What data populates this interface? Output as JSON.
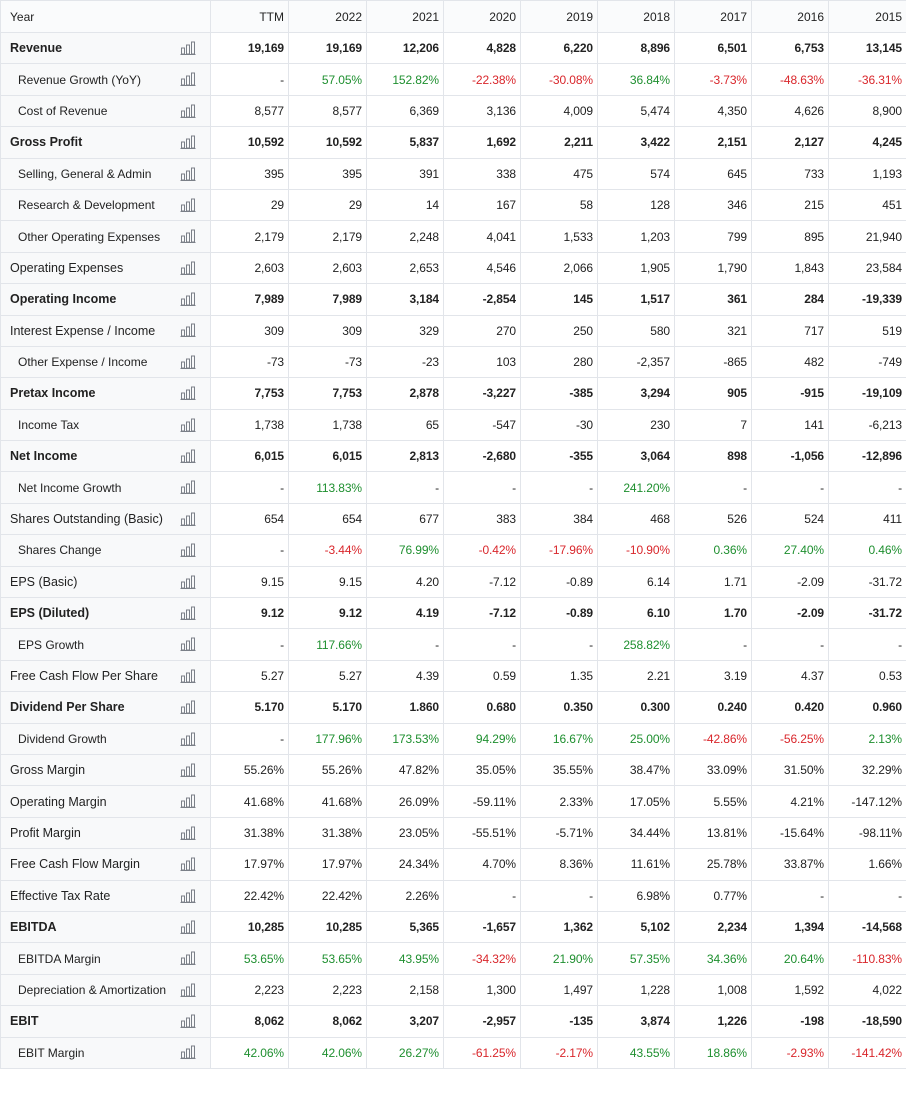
{
  "colors": {
    "positive": "#1e8f2f",
    "negative": "#d9262b",
    "chart_icon": "#7b8088"
  },
  "header": {
    "label": "Year",
    "columns": [
      "TTM",
      "2022",
      "2021",
      "2020",
      "2019",
      "2018",
      "2017",
      "2016",
      "2015"
    ]
  },
  "rows": [
    {
      "label": "Revenue",
      "bold": true,
      "values": [
        "19,169",
        "19,169",
        "12,206",
        "4,828",
        "6,220",
        "8,896",
        "6,501",
        "6,753",
        "13,145"
      ]
    },
    {
      "label": "Revenue Growth (YoY)",
      "sub": true,
      "values": [
        "-",
        "57.05%",
        "152.82%",
        "-22.38%",
        "-30.08%",
        "36.84%",
        "-3.73%",
        "-48.63%",
        "-36.31%"
      ]
    },
    {
      "label": "Cost of Revenue",
      "sub": true,
      "values": [
        "8,577",
        "8,577",
        "6,369",
        "3,136",
        "4,009",
        "5,474",
        "4,350",
        "4,626",
        "8,900"
      ]
    },
    {
      "label": "Gross Profit",
      "bold": true,
      "values": [
        "10,592",
        "10,592",
        "5,837",
        "1,692",
        "2,211",
        "3,422",
        "2,151",
        "2,127",
        "4,245"
      ]
    },
    {
      "label": "Selling, General & Admin",
      "sub": true,
      "values": [
        "395",
        "395",
        "391",
        "338",
        "475",
        "574",
        "645",
        "733",
        "1,193"
      ]
    },
    {
      "label": "Research & Development",
      "sub": true,
      "values": [
        "29",
        "29",
        "14",
        "167",
        "58",
        "128",
        "346",
        "215",
        "451"
      ]
    },
    {
      "label": "Other Operating Expenses",
      "sub": true,
      "values": [
        "2,179",
        "2,179",
        "2,248",
        "4,041",
        "1,533",
        "1,203",
        "799",
        "895",
        "21,940"
      ]
    },
    {
      "label": "Operating Expenses",
      "values": [
        "2,603",
        "2,603",
        "2,653",
        "4,546",
        "2,066",
        "1,905",
        "1,790",
        "1,843",
        "23,584"
      ]
    },
    {
      "label": "Operating Income",
      "bold": true,
      "values": [
        "7,989",
        "7,989",
        "3,184",
        "-2,854",
        "145",
        "1,517",
        "361",
        "284",
        "-19,339"
      ]
    },
    {
      "label": "Interest Expense / Income",
      "values": [
        "309",
        "309",
        "329",
        "270",
        "250",
        "580",
        "321",
        "717",
        "519"
      ]
    },
    {
      "label": "Other Expense / Income",
      "sub": true,
      "values": [
        "-73",
        "-73",
        "-23",
        "103",
        "280",
        "-2,357",
        "-865",
        "482",
        "-749"
      ]
    },
    {
      "label": "Pretax Income",
      "bold": true,
      "values": [
        "7,753",
        "7,753",
        "2,878",
        "-3,227",
        "-385",
        "3,294",
        "905",
        "-915",
        "-19,109"
      ]
    },
    {
      "label": "Income Tax",
      "sub": true,
      "values": [
        "1,738",
        "1,738",
        "65",
        "-547",
        "-30",
        "230",
        "7",
        "141",
        "-6,213"
      ]
    },
    {
      "label": "Net Income",
      "bold": true,
      "values": [
        "6,015",
        "6,015",
        "2,813",
        "-2,680",
        "-355",
        "3,064",
        "898",
        "-1,056",
        "-12,896"
      ]
    },
    {
      "label": "Net Income Growth",
      "sub": true,
      "values": [
        "-",
        "113.83%",
        "-",
        "-",
        "-",
        "241.20%",
        "-",
        "-",
        "-"
      ]
    },
    {
      "label": "Shares Outstanding (Basic)",
      "values": [
        "654",
        "654",
        "677",
        "383",
        "384",
        "468",
        "526",
        "524",
        "411"
      ]
    },
    {
      "label": "Shares Change",
      "sub": true,
      "values": [
        "-",
        "-3.44%",
        "76.99%",
        "-0.42%",
        "-17.96%",
        "-10.90%",
        "0.36%",
        "27.40%",
        "0.46%"
      ]
    },
    {
      "label": "EPS (Basic)",
      "values": [
        "9.15",
        "9.15",
        "4.20",
        "-7.12",
        "-0.89",
        "6.14",
        "1.71",
        "-2.09",
        "-31.72"
      ]
    },
    {
      "label": "EPS (Diluted)",
      "bold": true,
      "values": [
        "9.12",
        "9.12",
        "4.19",
        "-7.12",
        "-0.89",
        "6.10",
        "1.70",
        "-2.09",
        "-31.72"
      ]
    },
    {
      "label": "EPS Growth",
      "sub": true,
      "values": [
        "-",
        "117.66%",
        "-",
        "-",
        "-",
        "258.82%",
        "-",
        "-",
        "-"
      ]
    },
    {
      "label": "Free Cash Flow Per Share",
      "values": [
        "5.27",
        "5.27",
        "4.39",
        "0.59",
        "1.35",
        "2.21",
        "3.19",
        "4.37",
        "0.53"
      ]
    },
    {
      "label": "Dividend Per Share",
      "bold": true,
      "values": [
        "5.170",
        "5.170",
        "1.860",
        "0.680",
        "0.350",
        "0.300",
        "0.240",
        "0.420",
        "0.960"
      ]
    },
    {
      "label": "Dividend Growth",
      "sub": true,
      "values": [
        "-",
        "177.96%",
        "173.53%",
        "94.29%",
        "16.67%",
        "25.00%",
        "-42.86%",
        "-56.25%",
        "2.13%"
      ]
    },
    {
      "label": "Gross Margin",
      "values": [
        "55.26%",
        "55.26%",
        "47.82%",
        "35.05%",
        "35.55%",
        "38.47%",
        "33.09%",
        "31.50%",
        "32.29%"
      ]
    },
    {
      "label": "Operating Margin",
      "values": [
        "41.68%",
        "41.68%",
        "26.09%",
        "-59.11%",
        "2.33%",
        "17.05%",
        "5.55%",
        "4.21%",
        "-147.12%"
      ]
    },
    {
      "label": "Profit Margin",
      "values": [
        "31.38%",
        "31.38%",
        "23.05%",
        "-55.51%",
        "-5.71%",
        "34.44%",
        "13.81%",
        "-15.64%",
        "-98.11%"
      ]
    },
    {
      "label": "Free Cash Flow Margin",
      "values": [
        "17.97%",
        "17.97%",
        "24.34%",
        "4.70%",
        "8.36%",
        "11.61%",
        "25.78%",
        "33.87%",
        "1.66%"
      ]
    },
    {
      "label": "Effective Tax Rate",
      "values": [
        "22.42%",
        "22.42%",
        "2.26%",
        "-",
        "-",
        "6.98%",
        "0.77%",
        "-",
        "-"
      ]
    },
    {
      "label": "EBITDA",
      "bold": true,
      "values": [
        "10,285",
        "10,285",
        "5,365",
        "-1,657",
        "1,362",
        "5,102",
        "2,234",
        "1,394",
        "-14,568"
      ]
    },
    {
      "label": "EBITDA Margin",
      "sub": true,
      "values": [
        "53.65%",
        "53.65%",
        "43.95%",
        "-34.32%",
        "21.90%",
        "57.35%",
        "34.36%",
        "20.64%",
        "-110.83%"
      ]
    },
    {
      "label": "Depreciation & Amortization",
      "sub": true,
      "values": [
        "2,223",
        "2,223",
        "2,158",
        "1,300",
        "1,497",
        "1,228",
        "1,008",
        "1,592",
        "4,022"
      ]
    },
    {
      "label": "EBIT",
      "bold": true,
      "values": [
        "8,062",
        "8,062",
        "3,207",
        "-2,957",
        "-135",
        "3,874",
        "1,226",
        "-198",
        "-18,590"
      ]
    },
    {
      "label": "EBIT Margin",
      "sub": true,
      "values": [
        "42.06%",
        "42.06%",
        "26.27%",
        "-61.25%",
        "-2.17%",
        "43.55%",
        "18.86%",
        "-2.93%",
        "-141.42%"
      ]
    }
  ]
}
